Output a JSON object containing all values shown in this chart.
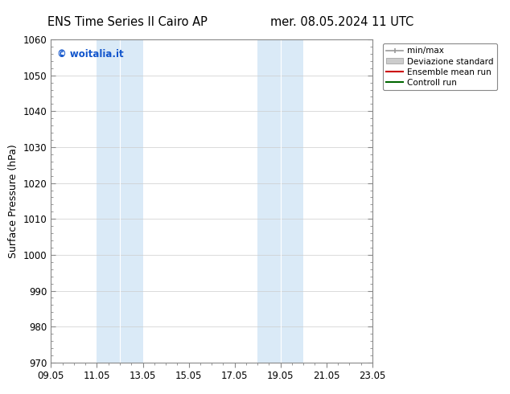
{
  "title_left": "ENS Time Series Il Cairo AP",
  "title_right": "mer. 08.05.2024 11 UTC",
  "ylabel": "Surface Pressure (hPa)",
  "ylim": [
    970,
    1060
  ],
  "yticks": [
    970,
    980,
    990,
    1000,
    1010,
    1020,
    1030,
    1040,
    1050,
    1060
  ],
  "xtick_labels": [
    "09.05",
    "11.05",
    "13.05",
    "15.05",
    "17.05",
    "19.05",
    "21.05",
    "23.05"
  ],
  "xmin": 0,
  "xmax": 14,
  "shaded_bands": [
    {
      "x_start": 2.0,
      "x_end": 3.0,
      "color": "#daeaf7"
    },
    {
      "x_start": 3.0,
      "x_end": 4.0,
      "color": "#daeaf7"
    },
    {
      "x_start": 8.0,
      "x_end": 9.0,
      "color": "#daeaf7"
    },
    {
      "x_start": 9.0,
      "x_end": 10.0,
      "color": "#daeaf7"
    }
  ],
  "watermark_text": "© woitalia.it",
  "watermark_color": "#1155cc",
  "legend_entries": [
    {
      "label": "min/max",
      "color": "#999999"
    },
    {
      "label": "Deviazione standard",
      "color": "#cccccc"
    },
    {
      "label": "Ensemble mean run",
      "color": "#cc0000"
    },
    {
      "label": "Controll run",
      "color": "#006600"
    }
  ],
  "bg_color": "#ffffff",
  "grid_color": "#cccccc",
  "tick_label_fontsize": 8.5,
  "title_fontsize": 10.5,
  "ylabel_fontsize": 9
}
